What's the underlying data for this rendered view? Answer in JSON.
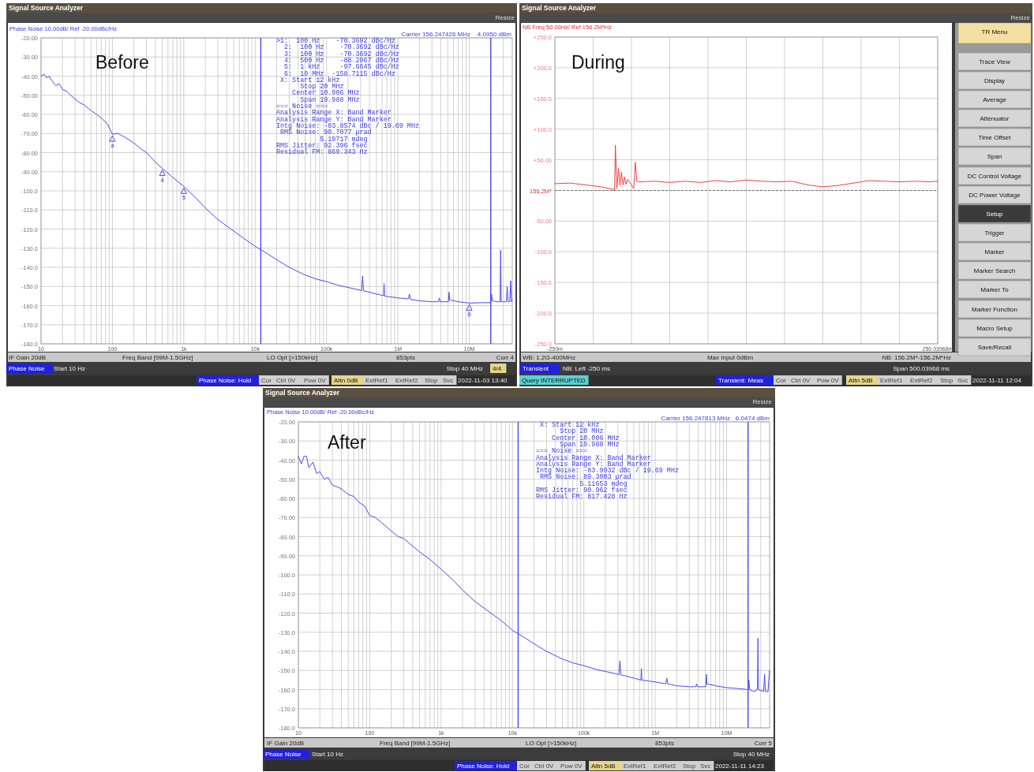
{
  "chart_data": [
    {
      "type": "line",
      "title": "Before",
      "subtitle": "Phase Noise 10.00dB/ Ref -20.00dBc/Hz",
      "x": [
        10,
        11,
        12,
        13,
        14,
        16,
        18,
        20,
        23,
        26,
        30,
        35,
        40,
        50,
        60,
        70,
        85,
        100,
        120,
        150,
        200,
        250,
        300,
        400,
        500,
        700,
        1000,
        1500,
        2000,
        3000,
        5000,
        7000,
        10000,
        15000,
        20000,
        30000,
        50000,
        70000,
        100000,
        150000,
        200000,
        300000,
        310000,
        320000,
        330000,
        400000,
        500000,
        630000,
        640000,
        650000,
        800000,
        1000000,
        1400000,
        1450000,
        1500000,
        2000000,
        3000000,
        3700000,
        3800000,
        3900000,
        5100000,
        5200000,
        5300000,
        7000000,
        10000000,
        15000000,
        20000000,
        20500000,
        21000000,
        24000000,
        27000000,
        27500000,
        28000000,
        33000000,
        34000000,
        35000000,
        37000000,
        38000000,
        39000000,
        40000000
      ],
      "series": [
        {
          "color": "#4a4af0",
          "values": [
            -40,
            -39,
            -41,
            -40,
            -42,
            -45,
            -44,
            -47,
            -48,
            -50,
            -52,
            -54,
            -55,
            -58,
            -60,
            -62,
            -65,
            -70.4,
            -70,
            -72,
            -75,
            -78,
            -80,
            -85,
            -88.3,
            -93,
            -97.7,
            -104,
            -109,
            -115,
            -121,
            -125,
            -129,
            -133,
            -136,
            -140,
            -144,
            -146,
            -147.5,
            -149.5,
            -150.5,
            -152,
            -152.2,
            -144.5,
            -152.3,
            -153,
            -154,
            -154.8,
            -148.5,
            -155,
            -155.5,
            -156,
            -156.5,
            -154,
            -156.8,
            -157.5,
            -158,
            -158,
            -156,
            -158,
            -158,
            -153,
            -157,
            -158,
            -158.7,
            -158.5,
            -158.5,
            -154,
            -157.5,
            -158,
            -158,
            -131,
            -158,
            -158,
            -150,
            -158,
            -158,
            -147,
            -158,
            -157
          ]
        }
      ],
      "log": "x",
      "xlim": [
        10,
        40000000
      ],
      "ylim": [
        -180,
        -20
      ],
      "grid": true,
      "xticks": [
        {
          "value": 10,
          "label": "10"
        },
        {
          "value": 20,
          "label": null
        },
        {
          "value": 30,
          "label": null
        },
        {
          "value": 40,
          "label": null
        },
        {
          "value": 50,
          "label": null
        },
        {
          "value": 60,
          "label": null
        },
        {
          "value": 70,
          "label": null
        },
        {
          "value": 80,
          "label": null
        },
        {
          "value": 90,
          "label": null
        },
        {
          "value": 100,
          "label": "100"
        },
        {
          "value": 200,
          "label": null
        },
        {
          "value": 300,
          "label": null
        },
        {
          "value": 400,
          "label": null
        },
        {
          "value": 500,
          "label": null
        },
        {
          "value": 600,
          "label": null
        },
        {
          "value": 700,
          "label": null
        },
        {
          "value": 800,
          "label": null
        },
        {
          "value": 900,
          "label": null
        },
        {
          "value": 1000,
          "label": "1k"
        },
        {
          "value": 2000,
          "label": null
        },
        {
          "value": 3000,
          "label": null
        },
        {
          "value": 4000,
          "label": null
        },
        {
          "value": 5000,
          "label": null
        },
        {
          "value": 6000,
          "label": null
        },
        {
          "value": 7000,
          "label": null
        },
        {
          "value": 8000,
          "label": null
        },
        {
          "value": 9000,
          "label": null
        },
        {
          "value": 10000,
          "label": "10k"
        },
        {
          "value": 20000,
          "label": null
        },
        {
          "value": 30000,
          "label": null
        },
        {
          "value": 40000,
          "label": null
        },
        {
          "value": 50000,
          "label": null
        },
        {
          "value": 60000,
          "label": null
        },
        {
          "value": 70000,
          "label": null
        },
        {
          "value": 80000,
          "label": null
        },
        {
          "value": 90000,
          "label": null
        },
        {
          "value": 100000,
          "label": "100k"
        },
        {
          "value": 200000,
          "label": null
        },
        {
          "value": 300000,
          "label": null
        },
        {
          "value": 400000,
          "label": null
        },
        {
          "value": 500000,
          "label": null
        },
        {
          "value": 600000,
          "label": null
        },
        {
          "value": 700000,
          "label": null
        },
        {
          "value": 800000,
          "label": null
        },
        {
          "value": 900000,
          "label": null
        },
        {
          "value": 1000000,
          "label": "1M"
        },
        {
          "value": 2000000,
          "label": null
        },
        {
          "value": 3000000,
          "label": null
        },
        {
          "value": 4000000,
          "label": null
        },
        {
          "value": 5000000,
          "label": null
        },
        {
          "value": 6000000,
          "label": null
        },
        {
          "value": 7000000,
          "label": null
        },
        {
          "value": 8000000,
          "label": null
        },
        {
          "value": 9000000,
          "label": null
        },
        {
          "value": 10000000,
          "label": "10M"
        },
        {
          "value": 20000000,
          "label": null
        },
        {
          "value": 30000000,
          "label": null
        }
      ],
      "yticks": [
        {
          "value": -20,
          "label": "-20.00"
        },
        {
          "value": -30,
          "label": "-30.00"
        },
        {
          "value": -40,
          "label": "-40.00"
        },
        {
          "value": -50,
          "label": "-50.00"
        },
        {
          "value": -60,
          "label": "-60.00"
        },
        {
          "value": -70,
          "label": "-70.00"
        },
        {
          "value": -80,
          "label": "-80.00"
        },
        {
          "value": -90,
          "label": "-90.00"
        },
        {
          "value": -100,
          "label": "-100.0"
        },
        {
          "value": -110,
          "label": "-110.0"
        },
        {
          "value": -120,
          "label": "-120.0"
        },
        {
          "value": -130,
          "label": "-130.0"
        },
        {
          "value": -140,
          "label": "-140.0"
        },
        {
          "value": -150,
          "label": "-150.0"
        },
        {
          "value": -160,
          "label": "-160.0"
        },
        {
          "value": -170,
          "label": "-170.0"
        },
        {
          "value": -180,
          "label": "-180.0"
        }
      ],
      "ref_lines": [
        {
          "axis": "x",
          "value": 12000,
          "color": "#3333ee"
        },
        {
          "axis": "x",
          "value": 20000000,
          "color": "#3333ee"
        }
      ],
      "annotations": [
        "Signal Source Analyzer",
        "Resize",
        "Carrier 156.247426 MHz",
        "4.0950 dBm",
        ">1:  100 Hz    -70.3692 dBc/Hz",
        "  2:  100 Hz    -70.3692 dBc/Hz",
        "  3:  100 Hz    -70.3692 dBc/Hz",
        "  4:  500 Hz    -88.2967 dBc/Hz",
        "  5:  1 kHz     -97.6645 dBc/Hz",
        "  6:  10 MHz  -158.7115 dBc/Hz",
        " X: Start 12 kHz",
        "      Stop 20 MHz",
        "    Center 10.006 MHz",
        "      Span 19.988 MHz",
        "=== Noise ===",
        "Analysis Range X: Band Marker",
        "Analysis Range Y: Band Marker",
        "Intg Noise: -83.8574 dBc / 19.69 MHz",
        " RMS Noise: 90.7077 µrad",
        "           5.19717 mdeg",
        "RMS Jitter: 92.396 fsec",
        "Residual FM: 869.343 Hz",
        "IF Gain 20dB",
        "Freq Band [99M-1.5GHz]",
        "LO Opt [>150kHz]",
        "853pts",
        "Corr 4",
        "Phase Noise",
        "Start 10 Hz",
        "Stop 40 MHz",
        "4/4",
        "Phase Noise: Hold",
        "Cor",
        "Ctrl 0V",
        "Pow 0V",
        "Attn 0dB",
        "ExtRef1",
        "ExtRef2",
        "Stop",
        "Svc",
        "2022-11-03 13:40",
        {
          "text": "a",
          "x": 100,
          "y": -70.3692
        },
        {
          "text": "4",
          "x": 500,
          "y": -88.2967
        },
        {
          "text": "5",
          "x": 1000,
          "y": -97.6645
        },
        {
          "text": "6",
          "x": 10000000,
          "y": -158.7115
        }
      ]
    },
    {
      "type": "line",
      "title": "During",
      "subtitle": "NB Freq 50.00Hz/ Ref 156.2M*Hz",
      "x": [
        -250,
        -230,
        -210,
        -190,
        -175,
        -172,
        -171,
        -169,
        -167,
        -165,
        -163,
        -161,
        -159,
        -157,
        -155,
        -150,
        -147,
        -145,
        -143,
        -140,
        -120,
        -100,
        -80,
        -60,
        -40,
        -20,
        0,
        20,
        40,
        60,
        80,
        100,
        120,
        140,
        160,
        180,
        200,
        220,
        240,
        250.03968
      ],
      "series": [
        {
          "color": "#f04040",
          "values": [
            11,
            12,
            9,
            6,
            2,
            1,
            74,
            3,
            36,
            8,
            30,
            9,
            22,
            10,
            18,
            9,
            3,
            46,
            15,
            14,
            15,
            13,
            15,
            13,
            16,
            14,
            17,
            15,
            14,
            15,
            9,
            6,
            8,
            12,
            16,
            15,
            14,
            15,
            14,
            15
          ]
        }
      ],
      "xlim": [
        -250,
        250.03968
      ],
      "ylim": [
        -250,
        250
      ],
      "grid": true,
      "xticks": [
        {
          "value": -250,
          "label": "-250m"
        },
        {
          "value": -200,
          "label": null
        },
        {
          "value": -150,
          "label": null
        },
        {
          "value": -100,
          "label": null
        },
        {
          "value": -50,
          "label": null
        },
        {
          "value": 0,
          "label": null
        },
        {
          "value": 50,
          "label": null
        },
        {
          "value": 100,
          "label": null
        },
        {
          "value": 150,
          "label": null
        },
        {
          "value": 200,
          "label": null
        },
        {
          "value": 250.03968,
          "label": "250.03968m"
        }
      ],
      "yticks": [
        {
          "value": 250,
          "label": "+250.0"
        },
        {
          "value": 200,
          "label": "+200.0"
        },
        {
          "value": 150,
          "label": "+150.0"
        },
        {
          "value": 100,
          "label": "+100.0"
        },
        {
          "value": 50,
          "label": "+50.00"
        },
        {
          "value": 0,
          "label": null
        },
        {
          "value": -50,
          "label": "-50.00"
        },
        {
          "value": -100,
          "label": "-100.0"
        },
        {
          "value": -150,
          "label": "-150.0"
        },
        {
          "value": -200,
          "label": "-200.0"
        },
        {
          "value": -250,
          "label": "-250.0"
        }
      ],
      "ref_lines": [
        {
          "axis": "y",
          "value": 0,
          "label": "156.2M*",
          "color": "#555555",
          "line_style": "dashed"
        }
      ],
      "annotations": [
        "Signal Source Analyzer",
        "Resize",
        "TR Menu",
        "Trace View",
        "Display",
        "Average",
        "Attenuator",
        "Time Offset",
        "Span",
        "DC Control Voltage",
        "DC Power Voltage",
        "Setup",
        "Trigger",
        "Marker",
        "Marker Search",
        "Marker To",
        "Marker Function",
        "Macro Setup",
        "Save/Recall",
        "WB: 1.2G-400MHz",
        "Max Input 0dBm",
        "NB: 156.2M*-156.2M*Hz",
        "Transient",
        "NB: Left -250 ms",
        "Span 500.03968 ms",
        "Query INTERRUPTED",
        "Transient: Meas",
        "Cor",
        "Ctrl 0V",
        "Pow 0V",
        "Attn 5dB",
        "ExtRef1",
        "ExtRef2",
        "Stop",
        "Svc",
        "2022-11-11 12:04"
      ]
    },
    {
      "type": "line",
      "title": "After",
      "subtitle": "Phase Noise 10.00dB/ Ref -20.00dBc/Hz",
      "x": [
        10,
        11,
        12,
        13,
        14,
        16,
        18,
        20,
        23,
        26,
        30,
        35,
        40,
        50,
        60,
        70,
        85,
        100,
        120,
        150,
        200,
        250,
        300,
        400,
        500,
        700,
        1000,
        1500,
        2000,
        3000,
        5000,
        7000,
        10000,
        15000,
        20000,
        30000,
        50000,
        70000,
        100000,
        150000,
        200000,
        300000,
        310000,
        320000,
        330000,
        400000,
        500000,
        630000,
        640000,
        650000,
        800000,
        1000000,
        1400000,
        1450000,
        1500000,
        2000000,
        3000000,
        3700000,
        3800000,
        3900000,
        5100000,
        5200000,
        5300000,
        7000000,
        10000000,
        15000000,
        20000000,
        20500000,
        21000000,
        24000000,
        27000000,
        27500000,
        28000000,
        33000000,
        34000000,
        35000000,
        38000000,
        39000000,
        40000000
      ],
      "series": [
        {
          "color": "#4a4af0",
          "values": [
            -38,
            -42,
            -38,
            -38,
            -44,
            -41,
            -47,
            -46,
            -50,
            -49,
            -53,
            -54,
            -55,
            -58,
            -59,
            -62,
            -64,
            -69,
            -70,
            -73,
            -77,
            -80,
            -81,
            -85,
            -88,
            -92,
            -97,
            -103,
            -108,
            -114,
            -120,
            -124,
            -129,
            -133,
            -136,
            -140,
            -144,
            -146,
            -147.5,
            -149.5,
            -150.5,
            -152,
            -152.2,
            -145,
            -152.3,
            -153,
            -154,
            -155,
            -149,
            -155,
            -155.5,
            -156,
            -157,
            -154,
            -157,
            -158,
            -158.5,
            -158.5,
            -157,
            -158.5,
            -158.5,
            -152,
            -157,
            -158,
            -159,
            -159.5,
            -160,
            -155,
            -160,
            -161,
            -160,
            -133,
            -160,
            -161,
            -152,
            -161,
            -161,
            -155,
            -150
          ]
        }
      ],
      "log": "x",
      "xlim": [
        10,
        40000000
      ],
      "ylim": [
        -180,
        -20
      ],
      "grid": true,
      "xticks": [
        {
          "value": 10,
          "label": "10"
        },
        {
          "value": 20,
          "label": null
        },
        {
          "value": 30,
          "label": null
        },
        {
          "value": 40,
          "label": null
        },
        {
          "value": 50,
          "label": null
        },
        {
          "value": 60,
          "label": null
        },
        {
          "value": 70,
          "label": null
        },
        {
          "value": 80,
          "label": null
        },
        {
          "value": 90,
          "label": null
        },
        {
          "value": 100,
          "label": "100"
        },
        {
          "value": 200,
          "label": null
        },
        {
          "value": 300,
          "label": null
        },
        {
          "value": 400,
          "label": null
        },
        {
          "value": 500,
          "label": null
        },
        {
          "value": 600,
          "label": null
        },
        {
          "value": 700,
          "label": null
        },
        {
          "value": 800,
          "label": null
        },
        {
          "value": 900,
          "label": null
        },
        {
          "value": 1000,
          "label": "1k"
        },
        {
          "value": 2000,
          "label": null
        },
        {
          "value": 3000,
          "label": null
        },
        {
          "value": 4000,
          "label": null
        },
        {
          "value": 5000,
          "label": null
        },
        {
          "value": 6000,
          "label": null
        },
        {
          "value": 7000,
          "label": null
        },
        {
          "value": 8000,
          "label": null
        },
        {
          "value": 9000,
          "label": null
        },
        {
          "value": 10000,
          "label": "10k"
        },
        {
          "value": 20000,
          "label": null
        },
        {
          "value": 30000,
          "label": null
        },
        {
          "value": 40000,
          "label": null
        },
        {
          "value": 50000,
          "label": null
        },
        {
          "value": 60000,
          "label": null
        },
        {
          "value": 70000,
          "label": null
        },
        {
          "value": 80000,
          "label": null
        },
        {
          "value": 90000,
          "label": null
        },
        {
          "value": 100000,
          "label": "100k"
        },
        {
          "value": 200000,
          "label": null
        },
        {
          "value": 300000,
          "label": null
        },
        {
          "value": 400000,
          "label": null
        },
        {
          "value": 500000,
          "label": null
        },
        {
          "value": 600000,
          "label": null
        },
        {
          "value": 700000,
          "label": null
        },
        {
          "value": 800000,
          "label": null
        },
        {
          "value": 900000,
          "label": null
        },
        {
          "value": 1000000,
          "label": "1M"
        },
        {
          "value": 2000000,
          "label": null
        },
        {
          "value": 3000000,
          "label": null
        },
        {
          "value": 4000000,
          "label": null
        },
        {
          "value": 5000000,
          "label": null
        },
        {
          "value": 6000000,
          "label": null
        },
        {
          "value": 7000000,
          "label": null
        },
        {
          "value": 8000000,
          "label": null
        },
        {
          "value": 9000000,
          "label": null
        },
        {
          "value": 10000000,
          "label": "10M"
        },
        {
          "value": 20000000,
          "label": null
        },
        {
          "value": 30000000,
          "label": null
        }
      ],
      "yticks": [
        {
          "value": -20,
          "label": "-20.00"
        },
        {
          "value": -30,
          "label": "-30.00"
        },
        {
          "value": -40,
          "label": "-40.00"
        },
        {
          "value": -50,
          "label": "-50.00"
        },
        {
          "value": -60,
          "label": "-60.00"
        },
        {
          "value": -70,
          "label": "-70.00"
        },
        {
          "value": -80,
          "label": "-80.00"
        },
        {
          "value": -90,
          "label": "-90.00"
        },
        {
          "value": -100,
          "label": "-100.0"
        },
        {
          "value": -110,
          "label": "-110.0"
        },
        {
          "value": -120,
          "label": "-120.0"
        },
        {
          "value": -130,
          "label": "-130.0"
        },
        {
          "value": -140,
          "label": "-140.0"
        },
        {
          "value": -150,
          "label": "-150.0"
        },
        {
          "value": -160,
          "label": "-160.0"
        },
        {
          "value": -170,
          "label": "-170.0"
        },
        {
          "value": -180,
          "label": "-180.0"
        }
      ],
      "ref_lines": [
        {
          "axis": "x",
          "value": 12000,
          "color": "#3333ee"
        },
        {
          "axis": "x",
          "value": 20000000,
          "color": "#3333ee"
        }
      ],
      "annotations": [
        "Signal Source Analyzer",
        "Resize",
        "Carrier 156.247813 MHz",
        "6.0474 dBm",
        " X: Start 12 kHz",
        "      Stop 20 MHz",
        "    Center 10.006 MHz",
        "      Span 19.988 MHz",
        "=== Noise ===",
        "Analysis Range X: Band Marker",
        "Analysis Range Y: Band Marker",
        "Intg Noise: -83.9932 dBc / 19.69 MHz",
        " RMS Noise: 89.3003 µrad",
        "           5.11653 mdeg",
        "RMS Jitter: 90.962 fsec",
        "Residual FM: 817.428 Hz",
        "IF Gain 20dB",
        "Freq Band [99M-1.5GHz]",
        "LO Opt [>150kHz]",
        "853pts",
        "Corr 5",
        "Phase Noise",
        "Start 10 Hz",
        "Stop 40 MHz",
        "Phase Noise: Hold",
        "Cor",
        "Ctrl 0V",
        "Pow 0V",
        "Attn 5dB",
        "ExtRef1",
        "ExtRef2",
        "Stop",
        "Svc",
        "2022-11-11 14:23"
      ]
    }
  ]
}
